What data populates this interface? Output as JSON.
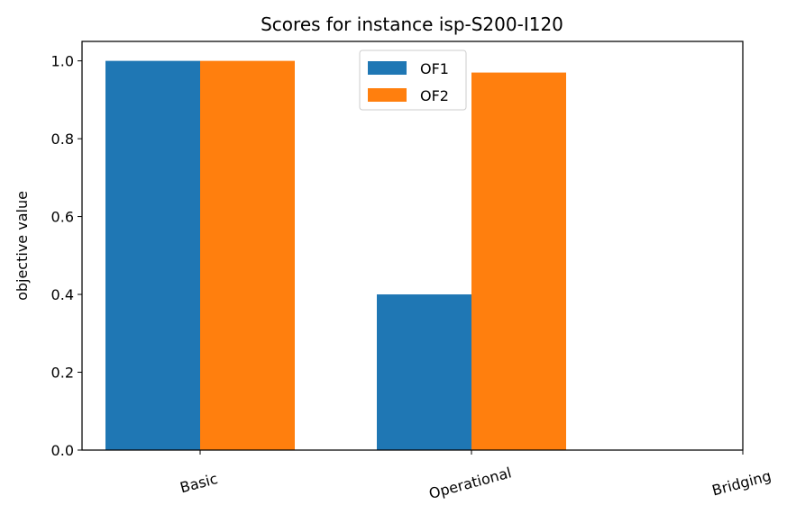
{
  "chart_data": {
    "type": "bar",
    "title": "Scores for instance isp-S200-I120",
    "xlabel": "",
    "ylabel": "objective value",
    "categories": [
      "Basic",
      "Operational",
      "Bridging"
    ],
    "series": [
      {
        "name": "OF1",
        "values": [
          1.0,
          0.4,
          0.0
        ],
        "color": "#1f77b4"
      },
      {
        "name": "OF2",
        "values": [
          1.0,
          0.97,
          0.0
        ],
        "color": "#ff7f0e"
      }
    ],
    "ylim": [
      0,
      1.05
    ],
    "yticks": [
      0.0,
      0.2,
      0.4,
      0.6,
      0.8,
      1.0
    ],
    "ytick_labels": [
      "0.0",
      "0.2",
      "0.4",
      "0.6",
      "0.8",
      "1.0"
    ],
    "xtick_rotation_deg": -15,
    "grid": false,
    "legend_position": "top-center"
  }
}
